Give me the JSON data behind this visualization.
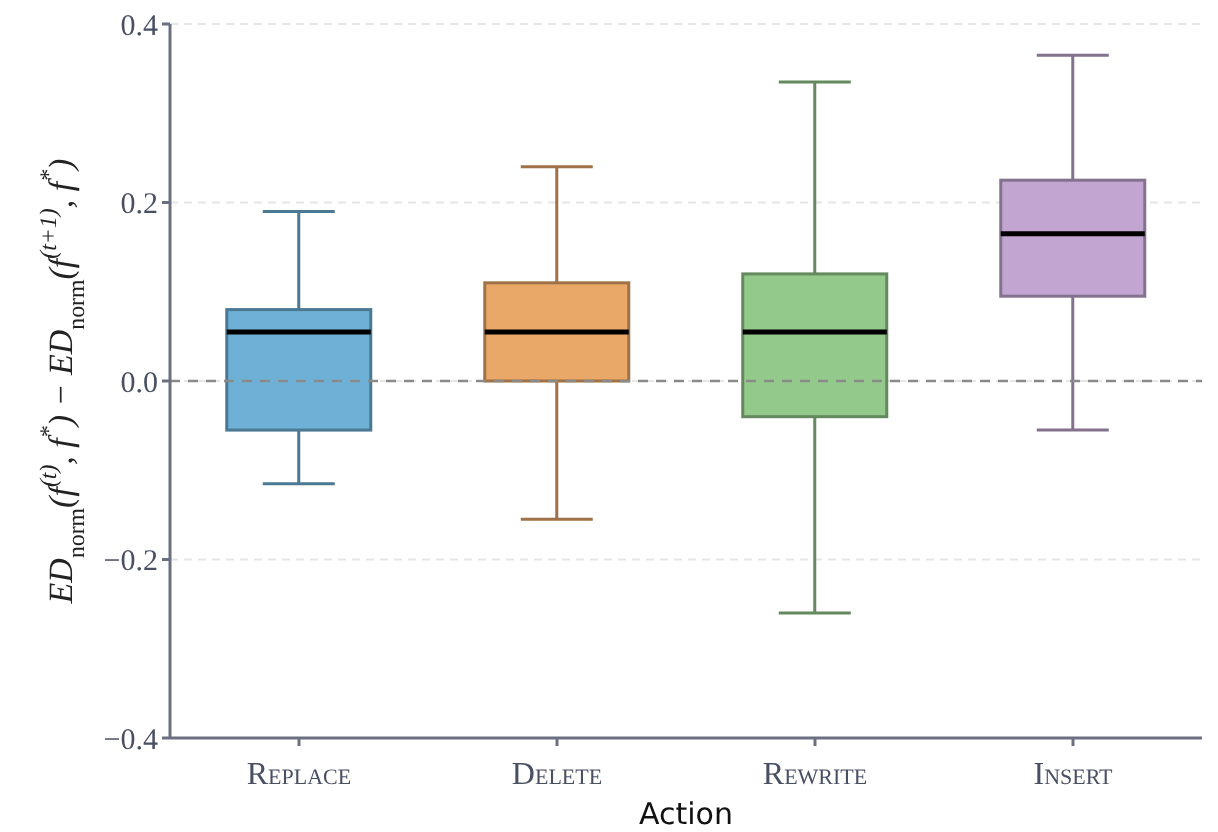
{
  "chart_data": {
    "type": "box",
    "ylabel": "ED$_{norm}$(f$^{(t)}$, f$^{*}$) − ED$_{norm}$(f$^{(t+1)}$, f$^{*}$)",
    "xlabel": "Action",
    "categories": [
      "Replace",
      "Delete",
      "Rewrite",
      "Insert"
    ],
    "boxes": [
      {
        "low": -0.115,
        "q1": -0.055,
        "median": 0.055,
        "q3": 0.08,
        "high": 0.19
      },
      {
        "low": -0.155,
        "q1": 0,
        "median": 0.055,
        "q3": 0.11,
        "high": 0.24
      },
      {
        "low": -0.26,
        "q1": -0.04,
        "median": 0.055,
        "q3": 0.12,
        "high": 0.335
      },
      {
        "low": -0.055,
        "q1": 0.095,
        "median": 0.165,
        "q3": 0.225,
        "high": 0.365
      }
    ],
    "colors": [
      "#6fb0d6",
      "#e9a867",
      "#93c98a",
      "#c2a6d1"
    ],
    "ylim": [
      -0.4,
      0.4
    ],
    "yticks": [
      {
        "value": -0.4,
        "label": "−0.4"
      },
      {
        "value": -0.2,
        "label": "−0.2"
      },
      {
        "value": 0,
        "label": "0.0"
      },
      0.2,
      0.4
    ],
    "grid": "y",
    "ref_lines": [
      {
        "axis": "y",
        "value": 0,
        "color": "#8a8a8a",
        "line_style": "dashed"
      }
    ]
  }
}
